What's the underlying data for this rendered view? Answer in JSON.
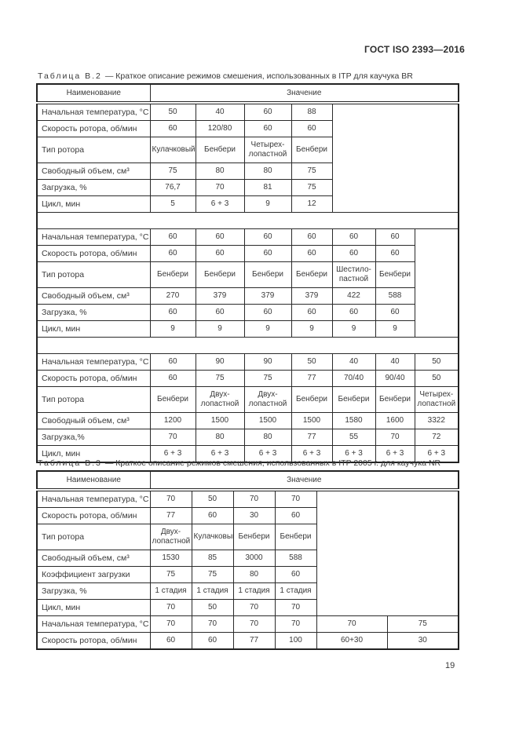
{
  "page": {
    "doc_header": "ГОСТ ISO 2393—2016",
    "page_number": "19"
  },
  "colors": {
    "background": "#ffffff",
    "text": "#3a3a3a",
    "border": "#222222"
  },
  "tables": [
    {
      "caption_label": "Таблица В.2",
      "caption_text": "— Краткое описание режимов смешения, использованных в ITP для каучука BR",
      "col_header_name": "Наименование",
      "col_header_value": "Значение",
      "name_col_width": 144,
      "value_col_widths": [
        58,
        62,
        60,
        52,
        55,
        50,
        56
      ],
      "separator_rows": true,
      "sections": [
        {
          "fill_cols": 3,
          "rows": [
            {
              "label": "Начальная температура, °С",
              "values": [
                "50",
                "40",
                "60",
                "88"
              ]
            },
            {
              "label": "Скорость ротора, об/мин",
              "values": [
                "60",
                "120/80",
                "60",
                "60"
              ]
            },
            {
              "label": "Тип ротора",
              "tall": true,
              "values": [
                "Кулачковый",
                "Бенбери",
                "Четырех-\nлопастной",
                "Бенбери"
              ]
            },
            {
              "label": "Свободный объем, см³",
              "values": [
                "75",
                "80",
                "80",
                "75"
              ]
            },
            {
              "label": "Загрузка, %",
              "values": [
                "76,7",
                "70",
                "81",
                "75"
              ]
            },
            {
              "label": "Цикл, мин",
              "values": [
                "5",
                "6 + 3",
                "9",
                "12"
              ]
            }
          ]
        },
        {
          "fill_cols": 1,
          "rows": [
            {
              "label": "Начальная температура, °С",
              "values": [
                "60",
                "60",
                "60",
                "60",
                "60",
                "60"
              ]
            },
            {
              "label": "Скорость ротора, об/мин",
              "values": [
                "60",
                "60",
                "60",
                "60",
                "60",
                "60"
              ]
            },
            {
              "label": "Тип ротора",
              "tall": true,
              "values": [
                "Бенбери",
                "Бенбери",
                "Бенбери",
                "Бенбери",
                "Шестило-\nпастной",
                "Бенбери"
              ]
            },
            {
              "label": "Свободный объем, см³",
              "values": [
                "270",
                "379",
                "379",
                "379",
                "422",
                "588"
              ]
            },
            {
              "label": "Загрузка, %",
              "values": [
                "60",
                "60",
                "60",
                "60",
                "60",
                "60"
              ]
            },
            {
              "label": "Цикл, мин",
              "values": [
                "9",
                "9",
                "9",
                "9",
                "9",
                "9"
              ]
            }
          ]
        },
        {
          "fill_cols": 0,
          "rows": [
            {
              "label": "Начальная температура, °С",
              "values": [
                "60",
                "90",
                "90",
                "50",
                "40",
                "40",
                "50"
              ]
            },
            {
              "label": "Скорость ротора, об/мин",
              "values": [
                "60",
                "75",
                "75",
                "77",
                "70/40",
                "90/40",
                "50"
              ]
            },
            {
              "label": "Тип ротора",
              "tall": true,
              "values": [
                "Бенбери",
                "Двух-\nлопастной",
                "Двух-\nлопастной",
                "Бенбери",
                "Бенбери",
                "Бенбери",
                "Четырех-\nлопастной"
              ]
            },
            {
              "label": "Свободный объем, см³",
              "values": [
                "1200",
                "1500",
                "1500",
                "1500",
                "1580",
                "1600",
                "3322"
              ]
            },
            {
              "label": "Загрузка,%",
              "values": [
                "70",
                "80",
                "80",
                "77",
                "55",
                "70",
                "72"
              ]
            },
            {
              "label": "Цикл, мин",
              "values": [
                "6 + 3",
                "6 + 3",
                "6 + 3",
                "6 + 3",
                "6 + 3",
                "6 + 3",
                "6 + 3"
              ]
            }
          ]
        }
      ]
    },
    {
      "caption_label": "Таблица В.3",
      "caption_text": "— Краткое описание режимов смешения, использованных в ITP 2005 г. для каучука NR",
      "col_header_name": "Наименование",
      "col_header_value": "Значение",
      "name_col_width": 144,
      "value_col_widths": [
        53,
        53,
        53,
        53,
        90,
        91
      ],
      "separator_rows": false,
      "sections": [
        {
          "fill_cols": 2,
          "rows": [
            {
              "label": "Начальная температура, °С",
              "values": [
                "70",
                "50",
                "70",
                "70"
              ]
            },
            {
              "label": "Скорость ротора, об/мин",
              "values": [
                "77",
                "60",
                "30",
                "60"
              ]
            },
            {
              "label": "Тип ротора",
              "tall": true,
              "values": [
                "Двух-\nлопастной",
                "Кулачковый",
                "Бенбери",
                "Бенбери"
              ]
            },
            {
              "label": "Свободный объем, см³",
              "values": [
                "1530",
                "85",
                "3000",
                "588"
              ]
            },
            {
              "label": "Коэффициент загрузки",
              "values": [
                "75",
                "75",
                "80",
                "60"
              ]
            },
            {
              "label": "Загрузка, %",
              "values": [
                "1 стадия",
                "1 стадия",
                "1 стадия",
                "1 стадия"
              ]
            },
            {
              "label": "Цикл, мин",
              "values": [
                "70",
                "50",
                "70",
                "70"
              ]
            }
          ]
        },
        {
          "fill_cols": 0,
          "rows": [
            {
              "label": "Начальная температура, °С",
              "values": [
                "70",
                "70",
                "70",
                "70",
                "70",
                "75"
              ]
            },
            {
              "label": "Скорость ротора, об/мин",
              "values": [
                "60",
                "60",
                "77",
                "100",
                "60+30",
                "30"
              ]
            }
          ]
        }
      ]
    }
  ]
}
